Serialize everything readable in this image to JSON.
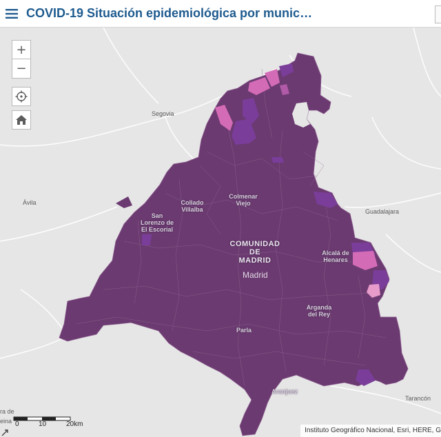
{
  "header": {
    "title": "COVID-19 Situación epidemiológica por munic…"
  },
  "controls": {
    "zoom_in": "+",
    "zoom_out": "−"
  },
  "map": {
    "colors": {
      "background": "#e6e6e6",
      "region_fill": "#6b3a70",
      "high_rate": "#7a3d9a",
      "low_rate": "#d46bb6",
      "lowest_rate": "#e79bcb"
    },
    "places": {
      "segovia": "Segovia",
      "avila": "Ávila",
      "guadalajara": "Guadalajara",
      "tarancon": "Tarancón",
      "region_name": [
        "COMUNIDAD",
        "DE",
        "MADRID"
      ],
      "madrid": "Madrid",
      "collado_villalba": [
        "Collado",
        "Villalba"
      ],
      "colmenar_viejo": [
        "Colmenar",
        "Viejo"
      ],
      "san_lorenzo": [
        "San",
        "Lorenzo de",
        "El Escorial"
      ],
      "alcala": [
        "Alcalá de",
        "Henares"
      ],
      "arganda": [
        "Arganda",
        "del Rey"
      ],
      "parla": "Parla",
      "aranjuez": "Aranjuez",
      "edge_left_1": "ra de",
      "edge_left_2": "eina"
    }
  },
  "scale": {
    "labels": [
      "0",
      "10",
      "20km"
    ]
  },
  "attribution": "Instituto Geográfico Nacional, Esri, HERE, G"
}
